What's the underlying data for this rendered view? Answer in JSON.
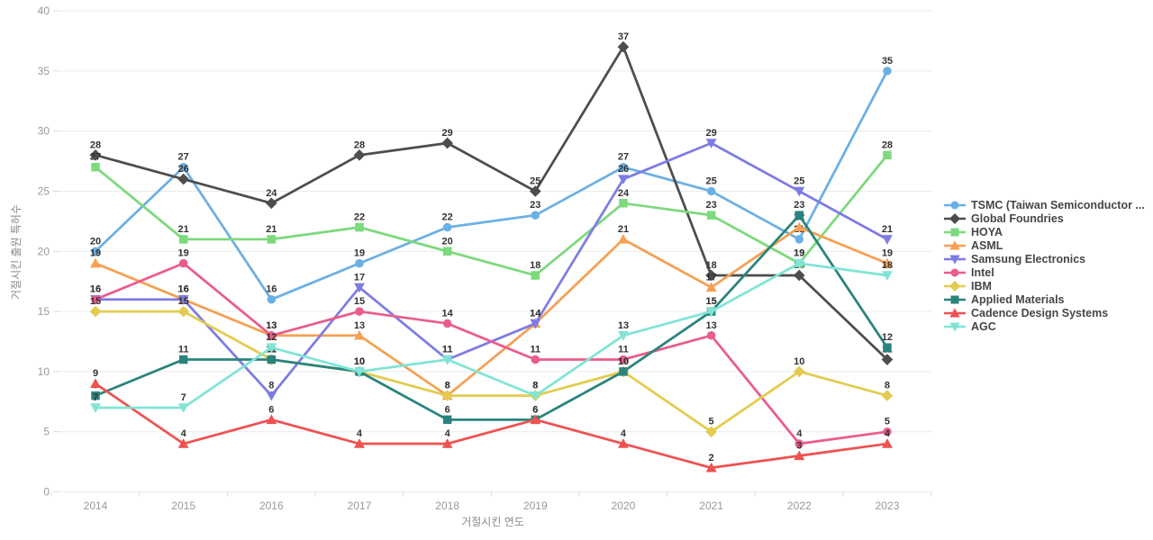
{
  "chart_data": {
    "type": "line",
    "title": "",
    "xlabel": "거절시킨 연도",
    "ylabel": "거절시킨 출원 특허수",
    "x": [
      "2014",
      "2015",
      "2016",
      "2017",
      "2018",
      "2019",
      "2020",
      "2021",
      "2022",
      "2023"
    ],
    "ylim": [
      0,
      40
    ],
    "ytick_step": 5,
    "yticks": [
      0,
      5,
      10,
      15,
      20,
      25,
      30,
      35,
      40
    ],
    "grid": true,
    "legend_position": "right",
    "series": [
      {
        "name": "TSMC (Taiwan Semiconductor ...",
        "color": "#6BB0E4",
        "marker": "circle",
        "values": [
          20,
          27,
          16,
          19,
          22,
          23,
          27,
          25,
          21,
          35
        ]
      },
      {
        "name": "Global Foundries",
        "color": "#4D4D4D",
        "marker": "diamond",
        "values": [
          28,
          26,
          24,
          28,
          29,
          25,
          37,
          18,
          18,
          11
        ]
      },
      {
        "name": "HOYA",
        "color": "#7CD97C",
        "marker": "square",
        "values": [
          27,
          21,
          21,
          22,
          20,
          18,
          24,
          23,
          19,
          28
        ]
      },
      {
        "name": "ASML",
        "color": "#F5A053",
        "marker": "triangle",
        "values": [
          19,
          16,
          13,
          13,
          8,
          14,
          21,
          17,
          22,
          19
        ]
      },
      {
        "name": "Samsung Electronics",
        "color": "#7E7CE4",
        "marker": "triangle-down",
        "values": [
          16,
          16,
          8,
          17,
          11,
          14,
          26,
          29,
          25,
          21
        ]
      },
      {
        "name": "Intel",
        "color": "#EA5C8B",
        "marker": "circle",
        "values": [
          16,
          19,
          13,
          15,
          14,
          11,
          11,
          13,
          4,
          5
        ]
      },
      {
        "name": "IBM",
        "color": "#E4CB50",
        "marker": "diamond",
        "values": [
          15,
          15,
          11,
          10,
          8,
          8,
          10,
          5,
          10,
          8
        ]
      },
      {
        "name": "Applied Materials",
        "color": "#2A847D",
        "marker": "square",
        "values": [
          8,
          11,
          11,
          10,
          6,
          6,
          10,
          15,
          23,
          12
        ]
      },
      {
        "name": "Cadence Design Systems",
        "color": "#EE5250",
        "marker": "triangle",
        "values": [
          9,
          4,
          6,
          4,
          4,
          6,
          4,
          2,
          3,
          4
        ]
      },
      {
        "name": "AGC",
        "color": "#80E4D6",
        "marker": "triangle-down",
        "values": [
          7,
          7,
          12,
          10,
          11,
          8,
          13,
          15,
          19,
          18
        ]
      }
    ]
  }
}
